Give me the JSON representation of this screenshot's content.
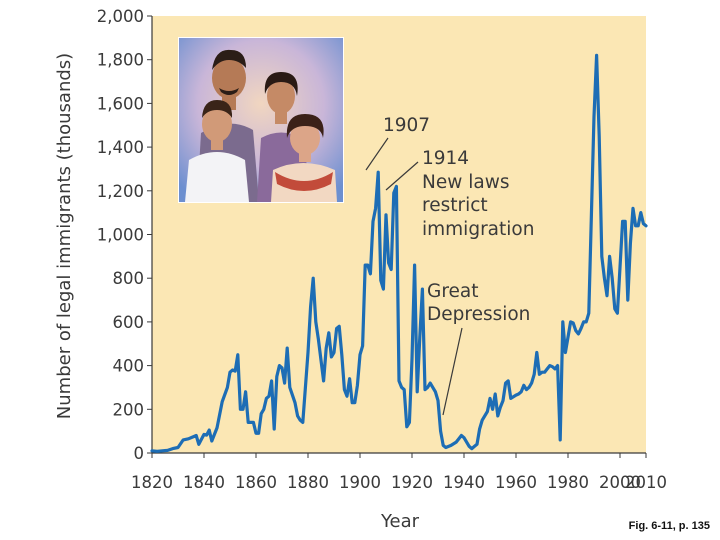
{
  "figure": {
    "caption": "Fig. 6-11, p. 135"
  },
  "colors": {
    "plot_background": "#fbe7b4",
    "line": "#1d6db5",
    "text": "#3a3a3a"
  },
  "chart_data": {
    "type": "line",
    "title": "",
    "xlabel": "Year",
    "ylabel": "Number of legal immigrants (thousands)",
    "xlim": [
      1820,
      2010
    ],
    "ylim": [
      0,
      2000
    ],
    "xticks": [
      1820,
      1840,
      1860,
      1880,
      1900,
      1920,
      1940,
      1960,
      1980,
      2000,
      2010
    ],
    "xtick_labels": [
      "1820",
      "1840",
      "1860",
      "1880",
      "1900",
      "1920",
      "1940",
      "1960",
      "1980",
      "2000",
      "2010"
    ],
    "yticks": [
      0,
      200,
      400,
      600,
      800,
      1000,
      1200,
      1400,
      1600,
      1800,
      2000
    ],
    "ytick_labels": [
      "0",
      "200",
      "400",
      "600",
      "800",
      "1,000",
      "1,200",
      "1,400",
      "1,600",
      "1,800",
      "2,000"
    ],
    "grid": false,
    "series": [
      {
        "points": [
          [
            1820,
            10
          ],
          [
            1822,
            8
          ],
          [
            1824,
            10
          ],
          [
            1826,
            12
          ],
          [
            1828,
            20
          ],
          [
            1830,
            25
          ],
          [
            1832,
            60
          ],
          [
            1834,
            65
          ],
          [
            1836,
            75
          ],
          [
            1837,
            80
          ],
          [
            1838,
            40
          ],
          [
            1840,
            85
          ],
          [
            1841,
            82
          ],
          [
            1842,
            105
          ],
          [
            1843,
            55
          ],
          [
            1845,
            115
          ],
          [
            1847,
            235
          ],
          [
            1849,
            300
          ],
          [
            1850,
            370
          ],
          [
            1851,
            380
          ],
          [
            1852,
            375
          ],
          [
            1853,
            450
          ],
          [
            1854,
            200
          ],
          [
            1855,
            200
          ],
          [
            1856,
            280
          ],
          [
            1857,
            140
          ],
          [
            1859,
            140
          ],
          [
            1860,
            90
          ],
          [
            1861,
            90
          ],
          [
            1862,
            180
          ],
          [
            1863,
            200
          ],
          [
            1864,
            250
          ],
          [
            1865,
            260
          ],
          [
            1866,
            330
          ],
          [
            1867,
            110
          ],
          [
            1868,
            350
          ],
          [
            1869,
            400
          ],
          [
            1870,
            390
          ],
          [
            1871,
            320
          ],
          [
            1872,
            480
          ],
          [
            1873,
            300
          ],
          [
            1875,
            230
          ],
          [
            1876,
            170
          ],
          [
            1877,
            150
          ],
          [
            1878,
            140
          ],
          [
            1880,
            460
          ],
          [
            1881,
            670
          ],
          [
            1882,
            800
          ],
          [
            1883,
            600
          ],
          [
            1884,
            520
          ],
          [
            1886,
            330
          ],
          [
            1887,
            480
          ],
          [
            1888,
            550
          ],
          [
            1889,
            440
          ],
          [
            1890,
            460
          ],
          [
            1891,
            570
          ],
          [
            1892,
            580
          ],
          [
            1893,
            450
          ],
          [
            1894,
            290
          ],
          [
            1895,
            260
          ],
          [
            1896,
            340
          ],
          [
            1897,
            230
          ],
          [
            1898,
            230
          ],
          [
            1899,
            310
          ],
          [
            1900,
            450
          ],
          [
            1901,
            490
          ],
          [
            1902,
            860
          ],
          [
            1903,
            860
          ],
          [
            1904,
            820
          ],
          [
            1905,
            1060
          ],
          [
            1906,
            1120
          ],
          [
            1907,
            1285
          ],
          [
            1908,
            790
          ],
          [
            1909,
            750
          ],
          [
            1910,
            1090
          ],
          [
            1911,
            870
          ],
          [
            1912,
            840
          ],
          [
            1913,
            1190
          ],
          [
            1914,
            1220
          ],
          [
            1915,
            330
          ],
          [
            1916,
            300
          ],
          [
            1917,
            290
          ],
          [
            1918,
            120
          ],
          [
            1919,
            140
          ],
          [
            1920,
            430
          ],
          [
            1921,
            860
          ],
          [
            1922,
            280
          ],
          [
            1923,
            530
          ],
          [
            1924,
            750
          ],
          [
            1925,
            290
          ],
          [
            1926,
            300
          ],
          [
            1927,
            320
          ],
          [
            1928,
            300
          ],
          [
            1929,
            280
          ],
          [
            1930,
            240
          ],
          [
            1931,
            100
          ],
          [
            1932,
            35
          ],
          [
            1933,
            25
          ],
          [
            1935,
            35
          ],
          [
            1937,
            50
          ],
          [
            1939,
            80
          ],
          [
            1940,
            70
          ],
          [
            1942,
            30
          ],
          [
            1943,
            20
          ],
          [
            1944,
            30
          ],
          [
            1945,
            40
          ],
          [
            1946,
            110
          ],
          [
            1947,
            150
          ],
          [
            1949,
            190
          ],
          [
            1950,
            250
          ],
          [
            1951,
            200
          ],
          [
            1952,
            270
          ],
          [
            1953,
            170
          ],
          [
            1954,
            210
          ],
          [
            1955,
            240
          ],
          [
            1956,
            320
          ],
          [
            1957,
            330
          ],
          [
            1958,
            250
          ],
          [
            1960,
            265
          ],
          [
            1961,
            270
          ],
          [
            1962,
            280
          ],
          [
            1963,
            310
          ],
          [
            1964,
            290
          ],
          [
            1965,
            300
          ],
          [
            1966,
            320
          ],
          [
            1967,
            360
          ],
          [
            1968,
            460
          ],
          [
            1969,
            360
          ],
          [
            1970,
            370
          ],
          [
            1971,
            370
          ],
          [
            1972,
            385
          ],
          [
            1973,
            400
          ],
          [
            1974,
            395
          ],
          [
            1975,
            385
          ],
          [
            1976,
            400
          ],
          [
            1977,
            60
          ],
          [
            1978,
            600
          ],
          [
            1979,
            460
          ],
          [
            1980,
            530
          ],
          [
            1981,
            600
          ],
          [
            1982,
            595
          ],
          [
            1983,
            560
          ],
          [
            1984,
            545
          ],
          [
            1985,
            570
          ],
          [
            1986,
            600
          ],
          [
            1987,
            600
          ],
          [
            1988,
            640
          ],
          [
            1989,
            1090
          ],
          [
            1990,
            1540
          ],
          [
            1991,
            1820
          ],
          [
            1992,
            1450
          ],
          [
            1993,
            900
          ],
          [
            1994,
            800
          ],
          [
            1995,
            720
          ],
          [
            1996,
            900
          ],
          [
            1997,
            800
          ],
          [
            1998,
            660
          ],
          [
            1999,
            640
          ],
          [
            2000,
            850
          ],
          [
            2001,
            1060
          ],
          [
            2002,
            1060
          ],
          [
            2003,
            700
          ],
          [
            2004,
            960
          ],
          [
            2005,
            1120
          ],
          [
            2006,
            1040
          ],
          [
            2007,
            1040
          ],
          [
            2008,
            1100
          ],
          [
            2009,
            1050
          ],
          [
            2010,
            1040
          ]
        ]
      }
    ],
    "annotations": [
      {
        "lines": [
          "1907"
        ],
        "anchor": "1907 peak"
      },
      {
        "lines": [
          "1914",
          "New laws",
          "restrict",
          "immigration"
        ],
        "anchor": "1914 peak"
      },
      {
        "lines": [
          "Great",
          "Depression"
        ],
        "anchor": "1930s trough"
      }
    ]
  }
}
